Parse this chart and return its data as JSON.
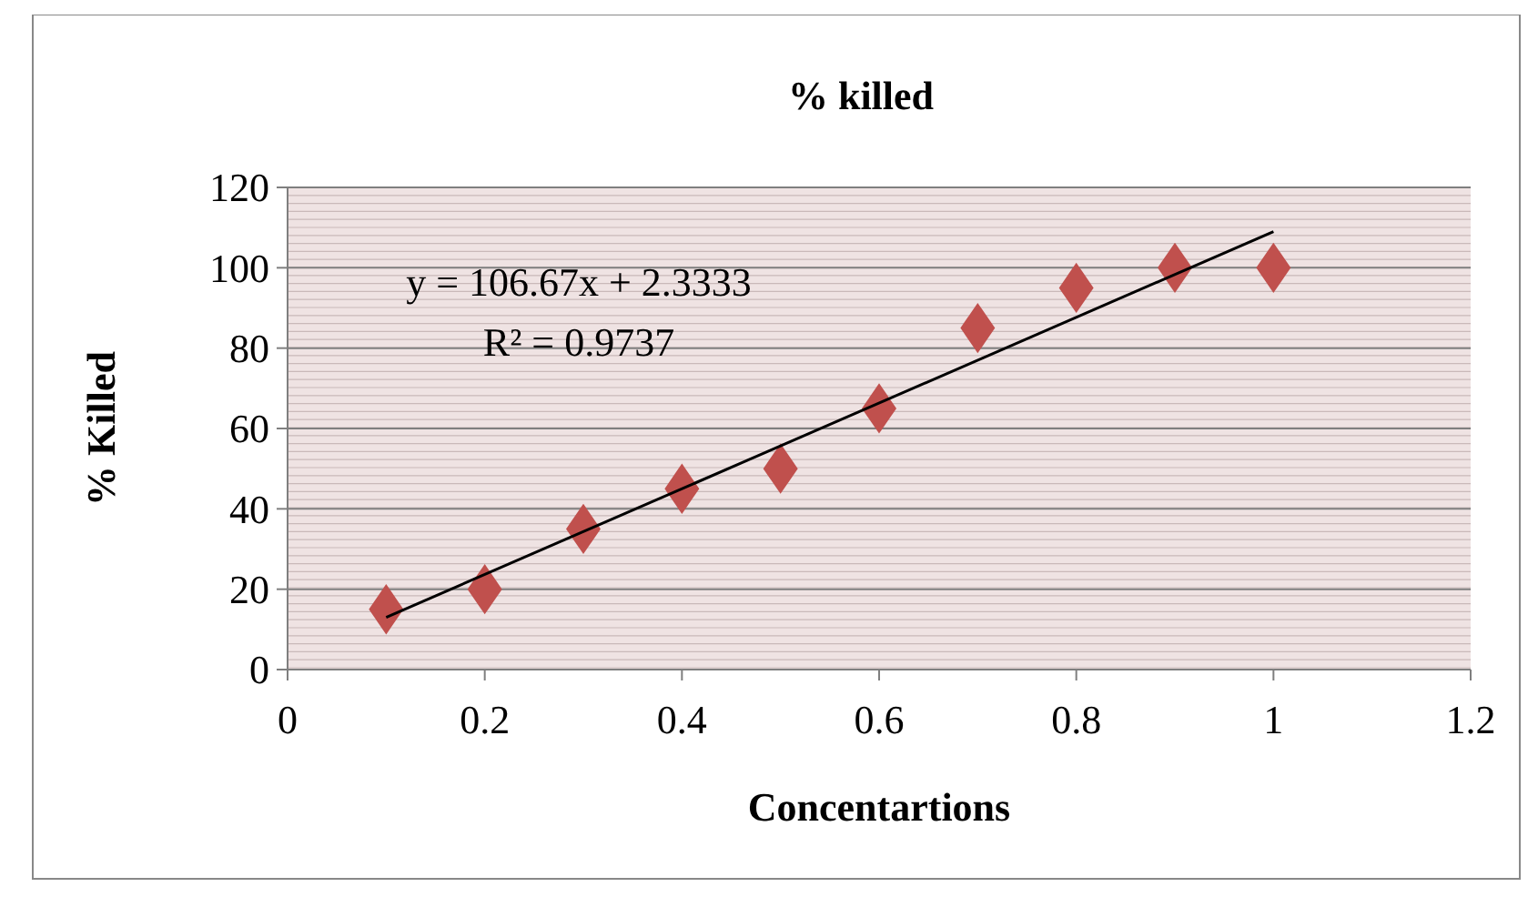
{
  "chart_data": {
    "type": "scatter",
    "title": "% killed",
    "xlabel": "Concentartions",
    "ylabel": "% Killed",
    "annotations": [
      "y = 106.67x + 2.3333",
      "R² = 0.9737"
    ],
    "series": [
      {
        "color": "#c0504d",
        "marker": "diamond",
        "x": [
          0.1,
          0.2,
          0.3,
          0.4,
          0.5,
          0.6,
          0.7,
          0.8,
          0.9,
          1.0
        ],
        "values": [
          15,
          20,
          35,
          45,
          50,
          65,
          85,
          95,
          100,
          100
        ]
      },
      {
        "type": "line",
        "color": "#000000",
        "x": [
          0.1,
          1.0
        ],
        "values": [
          13,
          109
        ]
      }
    ],
    "xlim": [
      0,
      1.2
    ],
    "xticks": [
      0,
      0.2,
      0.4,
      0.6,
      0.8,
      1,
      1.2
    ],
    "ylim": [
      0,
      120
    ],
    "yticks": [
      0,
      20,
      40,
      60,
      80,
      100,
      120
    ],
    "grid": "y"
  }
}
